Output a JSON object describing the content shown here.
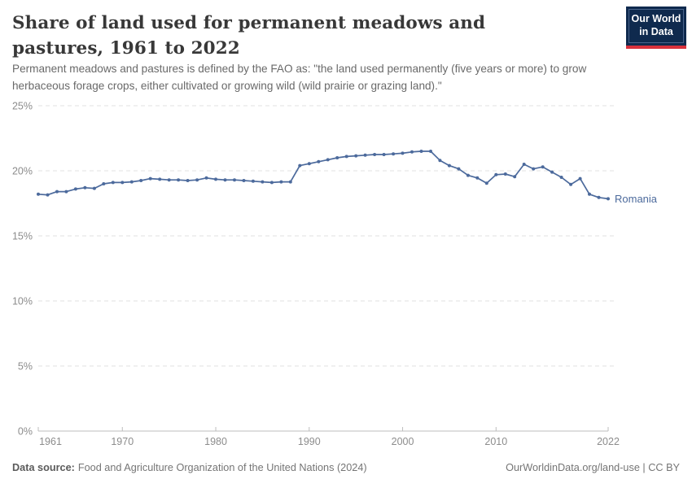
{
  "header": {
    "title": "Share of land used for permanent meadows and pastures, 1961 to 2022",
    "subtitle": "Permanent meadows and pastures is defined by the FAO as: \"the land used permanently (five years or more) to grow herbaceous forage crops, either cultivated or growing wild (wild prairie or grazing land).\"",
    "logo": {
      "line1": "Our World",
      "line2": "in Data",
      "bg_color": "#0f2a4e",
      "accent_color": "#d8313c"
    }
  },
  "chart_data": {
    "type": "line",
    "title": "Share of land used for permanent meadows and pastures, 1961 to 2022",
    "xlabel": "",
    "ylabel": "",
    "ylim": [
      0,
      25
    ],
    "grid": "horizontal-dashed",
    "legend_position": "end-of-line-label",
    "yticks": [
      "0%",
      "5%",
      "10%",
      "15%",
      "20%",
      "25%"
    ],
    "ytick_values": [
      0,
      5,
      10,
      15,
      20,
      25
    ],
    "xticks": [
      1961,
      1970,
      1980,
      1990,
      2000,
      2010,
      2022
    ],
    "x": [
      1961,
      1962,
      1963,
      1964,
      1965,
      1966,
      1967,
      1968,
      1969,
      1970,
      1971,
      1972,
      1973,
      1974,
      1975,
      1976,
      1977,
      1978,
      1979,
      1980,
      1981,
      1982,
      1983,
      1984,
      1985,
      1986,
      1987,
      1988,
      1989,
      1990,
      1991,
      1992,
      1993,
      1994,
      1995,
      1996,
      1997,
      1998,
      1999,
      2000,
      2001,
      2002,
      2003,
      2004,
      2005,
      2006,
      2007,
      2008,
      2009,
      2010,
      2011,
      2012,
      2013,
      2014,
      2015,
      2016,
      2017,
      2018,
      2019,
      2020,
      2021,
      2022
    ],
    "series": [
      {
        "name": "Romania",
        "color": "#4C6A9C",
        "values": [
          18.2,
          18.15,
          18.4,
          18.4,
          18.6,
          18.7,
          18.65,
          19.0,
          19.1,
          19.1,
          19.15,
          19.25,
          19.4,
          19.35,
          19.3,
          19.3,
          19.25,
          19.3,
          19.45,
          19.35,
          19.3,
          19.3,
          19.25,
          19.2,
          19.15,
          19.1,
          19.15,
          19.15,
          20.4,
          20.55,
          20.7,
          20.85,
          21.0,
          21.1,
          21.15,
          21.2,
          21.25,
          21.25,
          21.3,
          21.35,
          21.45,
          21.5,
          21.5,
          20.8,
          20.4,
          20.15,
          19.65,
          19.45,
          19.05,
          19.7,
          19.75,
          19.55,
          20.5,
          20.15,
          20.3,
          19.9,
          19.5,
          18.95,
          19.4,
          18.2,
          17.95,
          17.85
        ]
      }
    ]
  },
  "footer": {
    "datasource_label": "Data source:",
    "datasource": "Food and Agriculture Organization of the United Nations (2024)",
    "link": "OurWorldinData.org/land-use | CC BY"
  }
}
